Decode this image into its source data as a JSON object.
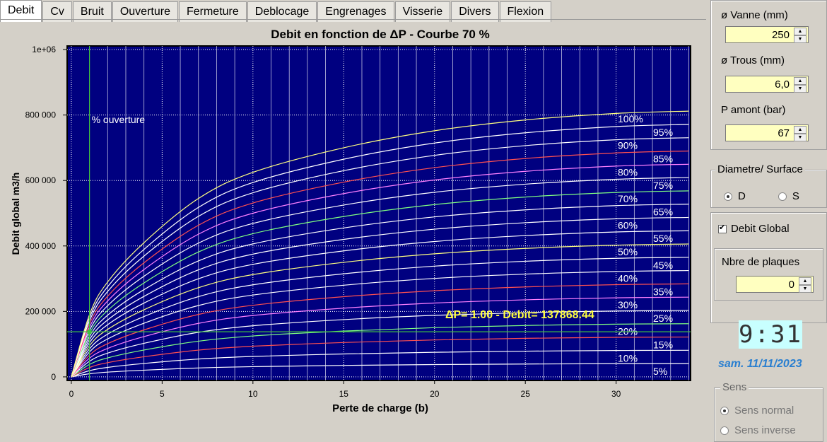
{
  "tabs": [
    "Debit",
    "Cv",
    "Bruit",
    "Ouverture",
    "Fermeture",
    "Deblocage",
    "Engrenages",
    "Visserie",
    "Divers",
    "Flexion"
  ],
  "chart_data": {
    "type": "line",
    "title": "Debit en fonction de ΔP - Courbe 70 %",
    "x_label": "Perte de charge (b)",
    "y_label": "Debit global m3/h",
    "x": [
      0,
      1,
      2,
      4,
      7,
      10,
      15,
      20,
      25,
      30,
      34
    ],
    "xlim": [
      -0.23,
      34.1
    ],
    "ylim": [
      -11000,
      1011000
    ],
    "xticks": [
      0,
      5,
      10,
      15,
      20,
      25,
      30
    ],
    "xminorticks": [
      1,
      2,
      3,
      4,
      6,
      7,
      8,
      9,
      11,
      12,
      13,
      14,
      16,
      17,
      18,
      19,
      21,
      22,
      23,
      24,
      26,
      27,
      28,
      29,
      31,
      32,
      33,
      34
    ],
    "yticks": [
      0,
      {
        "value": 200000,
        "label": "200 000"
      },
      {
        "value": 400000,
        "label": "400 000"
      },
      {
        "value": 600000,
        "label": "600 000"
      },
      {
        "value": 800000,
        "label": "800 000"
      },
      {
        "value": 1000000,
        "label": "1e+06"
      }
    ],
    "grid": true,
    "background": "#000080",
    "series": [
      {
        "name": "5%",
        "color": "#ffffff",
        "values": [
          0,
          9500,
          14500,
          20500,
          27250,
          31250,
          35000,
          37600,
          39250,
          40250,
          40600
        ]
      },
      {
        "name": "10%",
        "color": "#ffffff",
        "values": [
          0,
          19000,
          29000,
          41000,
          54500,
          62500,
          70000,
          75200,
          78500,
          80500,
          81200
        ]
      },
      {
        "name": "15%",
        "color": "#ff5050",
        "values": [
          0,
          28500,
          43500,
          61500,
          81750,
          93750,
          105000,
          112800,
          117750,
          120750,
          121800
        ]
      },
      {
        "name": "20%",
        "color": "#80ff80",
        "values": [
          0,
          38000,
          58000,
          82000,
          109000,
          125000,
          140000,
          150400,
          157000,
          161000,
          162400
        ]
      },
      {
        "name": "25%",
        "color": "#ffffff",
        "values": [
          0,
          47500,
          72500,
          102500,
          136250,
          156250,
          175000,
          188000,
          196250,
          201250,
          203000
        ]
      },
      {
        "name": "30%",
        "color": "#ff80ff",
        "values": [
          0,
          57000,
          87000,
          123000,
          163500,
          187500,
          210000,
          225600,
          235500,
          241500,
          243600
        ]
      },
      {
        "name": "35%",
        "color": "#ff5050",
        "values": [
          0,
          66500,
          101500,
          143500,
          190750,
          218750,
          245000,
          263200,
          274750,
          281750,
          284200
        ]
      },
      {
        "name": "40%",
        "color": "#ffffff",
        "values": [
          0,
          76000,
          116000,
          164000,
          218000,
          250000,
          280000,
          300800,
          314000,
          322000,
          324800
        ]
      },
      {
        "name": "45%",
        "color": "#ffffff",
        "values": [
          0,
          85500,
          130500,
          184500,
          245250,
          281250,
          315000,
          338400,
          353250,
          362250,
          365400
        ]
      },
      {
        "name": "50%",
        "color": "#ffff80",
        "values": [
          0,
          95000,
          145000,
          205000,
          272500,
          312500,
          350000,
          376000,
          392500,
          402500,
          406000
        ]
      },
      {
        "name": "55%",
        "color": "#ffffff",
        "values": [
          0,
          104500,
          159500,
          225500,
          299750,
          343750,
          385000,
          413600,
          431750,
          442750,
          446600
        ]
      },
      {
        "name": "60%",
        "color": "#ffffff",
        "values": [
          0,
          114000,
          174000,
          246000,
          327000,
          375000,
          420000,
          451200,
          471000,
          483000,
          487200
        ]
      },
      {
        "name": "65%",
        "color": "#ffffff",
        "values": [
          0,
          123500,
          188500,
          266500,
          354250,
          406250,
          455000,
          488800,
          510250,
          523250,
          527800
        ]
      },
      {
        "name": "70%",
        "color": "#80ff80",
        "values": [
          0,
          133000,
          203000,
          287000,
          381500,
          437500,
          490000,
          526400,
          549500,
          563500,
          568400
        ]
      },
      {
        "name": "75%",
        "color": "#ffffff",
        "values": [
          0,
          142500,
          217500,
          307500,
          408750,
          468750,
          525000,
          564000,
          588750,
          603750,
          609000
        ]
      },
      {
        "name": "80%",
        "color": "#ff80ff",
        "values": [
          0,
          152000,
          232000,
          328000,
          436000,
          500000,
          560000,
          601600,
          628000,
          644000,
          649600
        ]
      },
      {
        "name": "85%",
        "color": "#ff5050",
        "values": [
          0,
          161500,
          246500,
          348500,
          463250,
          531250,
          595000,
          639200,
          667250,
          684250,
          690200
        ]
      },
      {
        "name": "90%",
        "color": "#ffffff",
        "values": [
          0,
          171000,
          261000,
          369000,
          490500,
          562500,
          630000,
          676800,
          706500,
          724500,
          730800
        ]
      },
      {
        "name": "95%",
        "color": "#ffffff",
        "values": [
          0,
          180500,
          275500,
          389500,
          517750,
          593750,
          665000,
          714400,
          745750,
          764750,
          771400
        ]
      },
      {
        "name": "100%",
        "color": "#ffff80",
        "values": [
          0,
          190000,
          290000,
          410000,
          545000,
          625000,
          700000,
          752000,
          785000,
          805000,
          812000
        ]
      }
    ],
    "cursor": {
      "x": 1,
      "y": 137868.44,
      "color": "#40c040",
      "label": "ΔP= 1.00 - Debit= 137868.44",
      "label_color": "#ffff40"
    },
    "annotation": "% ouverture"
  },
  "panel": {
    "vanne": {
      "label": "ø Vanne (mm)",
      "value": "250"
    },
    "trous": {
      "label": "ø Trous (mm)",
      "value": "6,0"
    },
    "pamont": {
      "label": "P amont (bar)",
      "value": "67"
    },
    "diametre": {
      "title": "Diametre/ Surface",
      "options": [
        {
          "label": "D",
          "checked": true
        },
        {
          "label": "S",
          "checked": false
        }
      ]
    },
    "debit_global": {
      "label": "Debit Global",
      "checked": true
    },
    "plaques": {
      "label": "Nbre de plaques",
      "value": "0"
    },
    "clock": "9:31",
    "date": "sam. 11/11/2023",
    "sens": {
      "title": "Sens",
      "options": [
        {
          "label": "Sens normal",
          "checked": true
        },
        {
          "label": "Sens inverse",
          "checked": false
        }
      ]
    }
  }
}
